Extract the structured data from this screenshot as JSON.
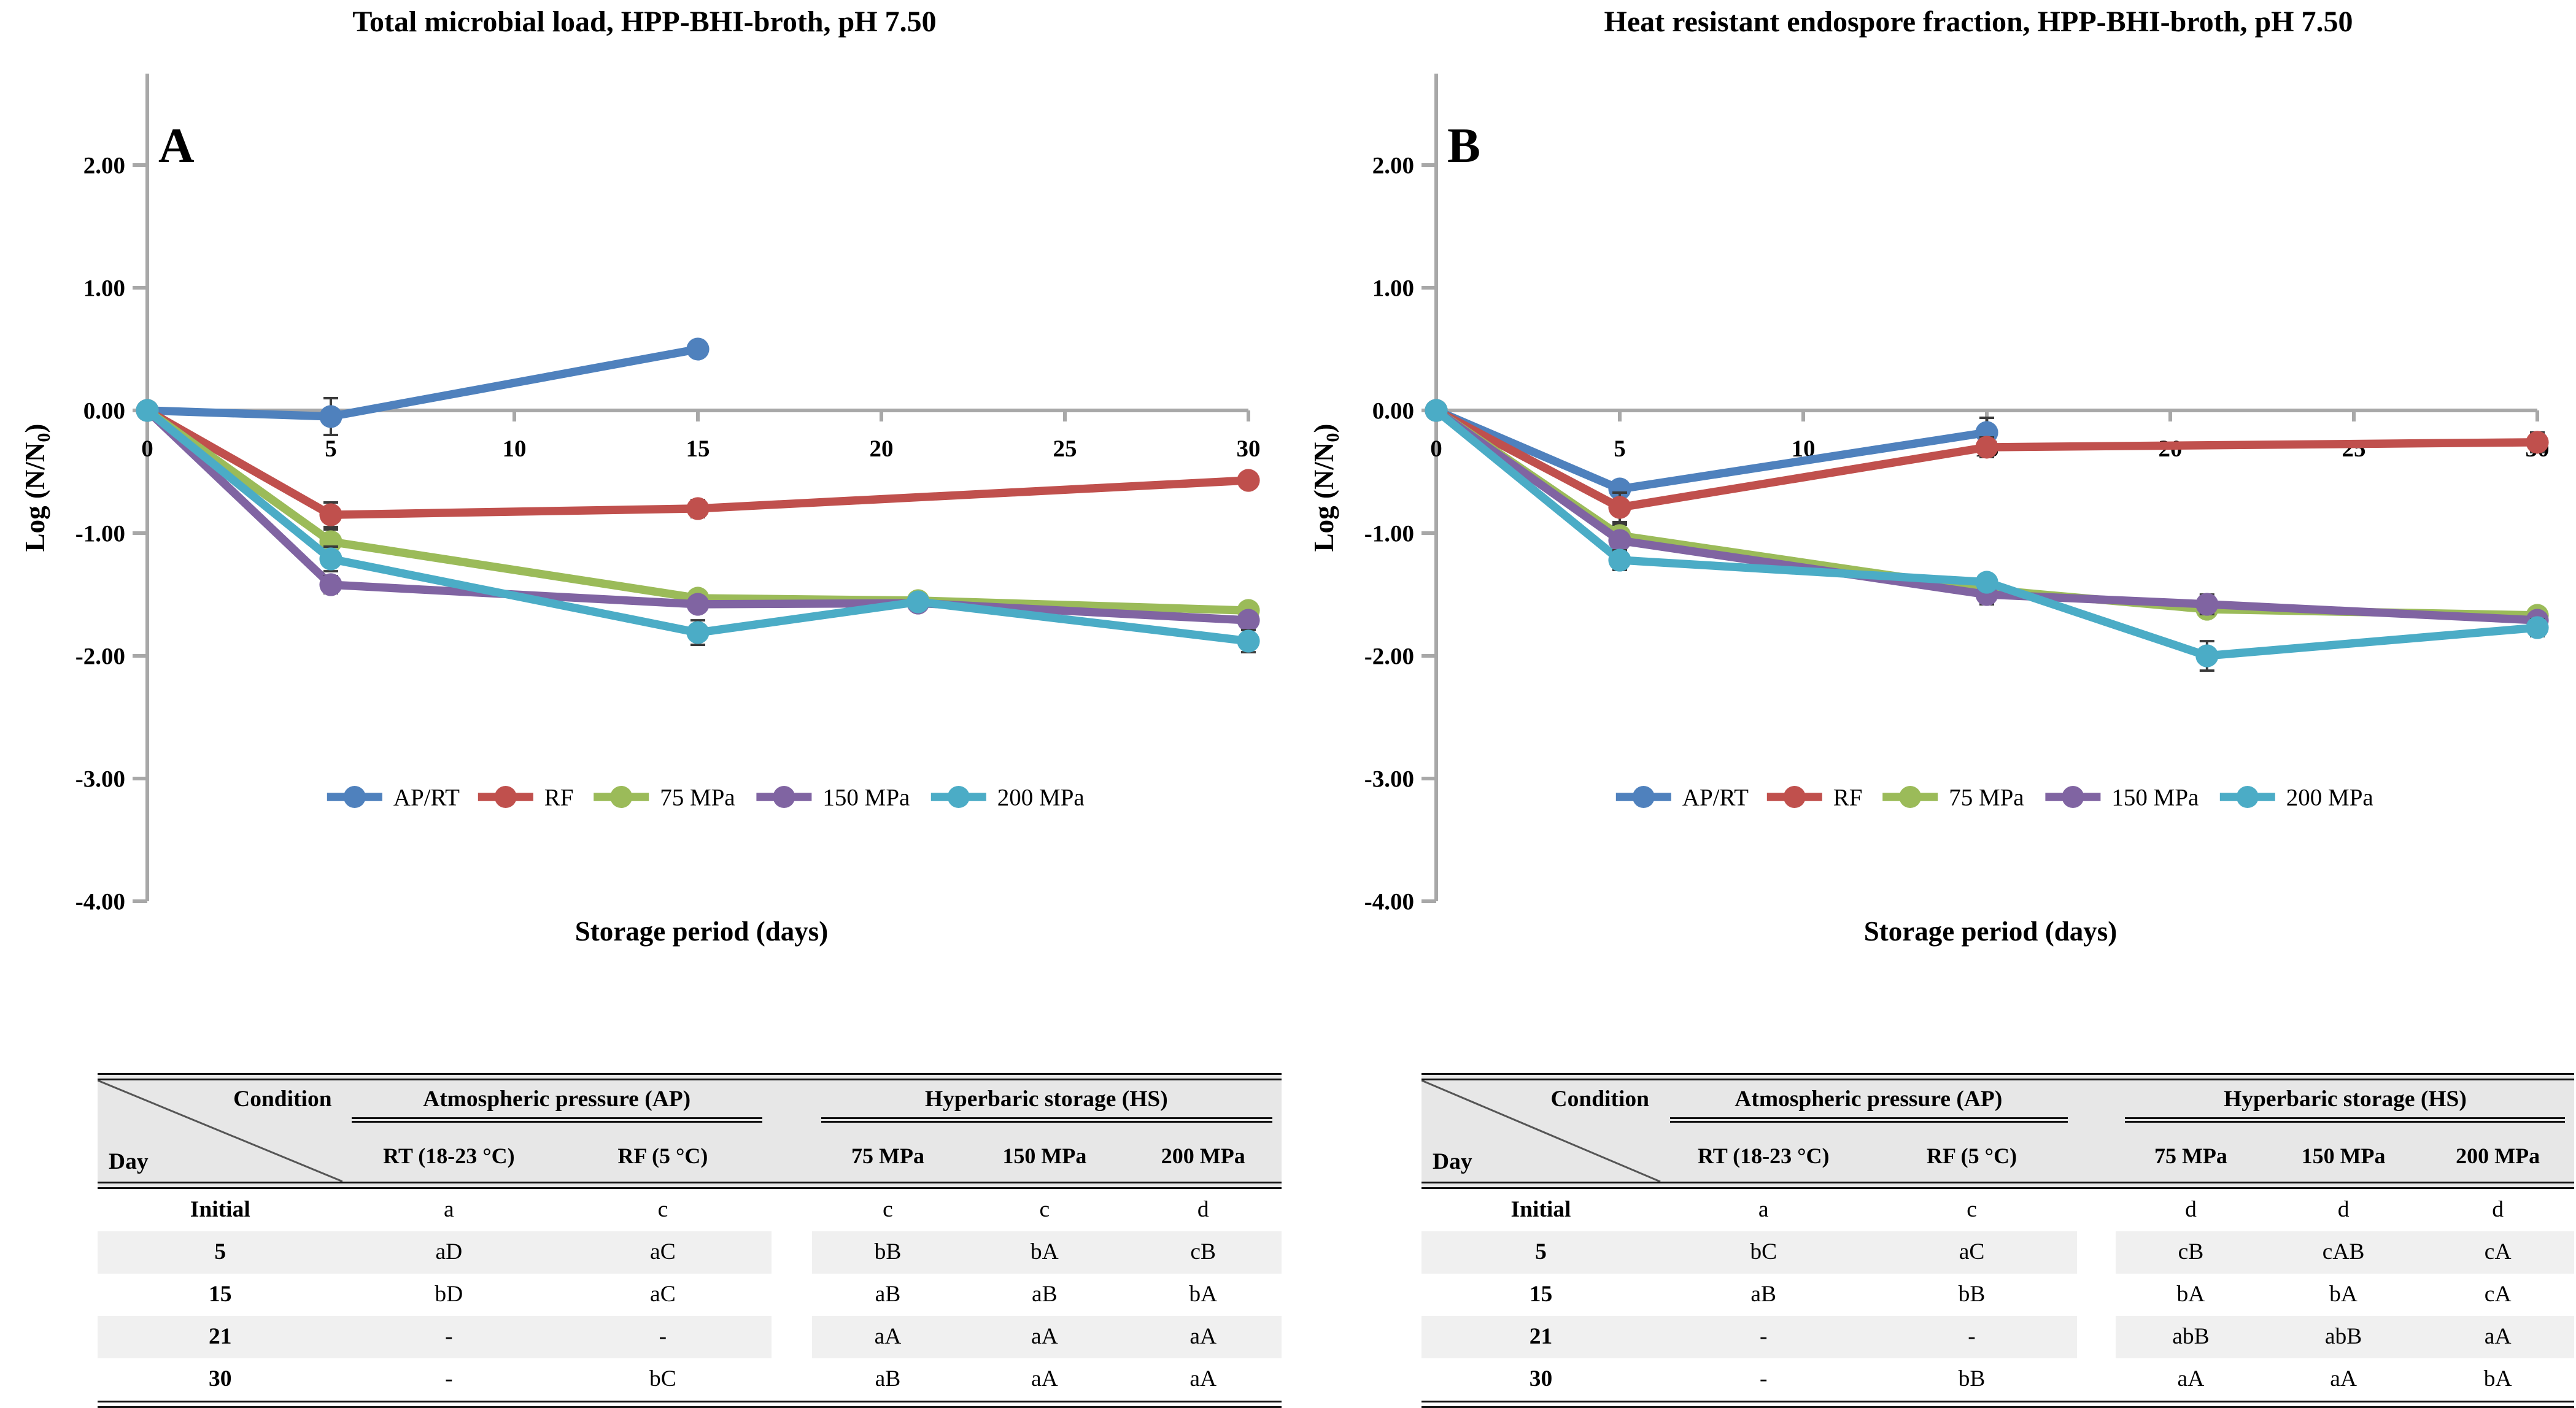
{
  "figure": {
    "background": "#ffffff",
    "axis_color": "#a8a8a8",
    "error_bar_color": "#3a3a3a",
    "table_header_bg": "#e7e7e7",
    "table_stripe_bg": "#f0f0f0",
    "rule_color": "#111111"
  },
  "chart_data": [
    {
      "type": "line",
      "panel_label": "A",
      "title": "Total microbial load, HPP-BHI-broth, pH 7.50",
      "xlabel": "Storage period (days)",
      "ylabel_parts": [
        {
          "text": "Log (N/N",
          "sub": false
        },
        {
          "text": "0",
          "sub": true
        },
        {
          "text": ")",
          "sub": false
        }
      ],
      "xlim": [
        0,
        30
      ],
      "ylim": [
        -4,
        2.75
      ],
      "grid": false,
      "legend_position": "inside-bottom",
      "xticks": [
        {
          "v": 0,
          "label": "0"
        },
        {
          "v": 5,
          "label": "5"
        },
        {
          "v": 10,
          "label": "10"
        },
        {
          "v": 15,
          "label": "15"
        },
        {
          "v": 20,
          "label": "20"
        },
        {
          "v": 25,
          "label": "25"
        },
        {
          "v": 30,
          "label": "30"
        }
      ],
      "yticks": [
        {
          "v": 2,
          "label": "2.00"
        },
        {
          "v": 1,
          "label": "1.00"
        },
        {
          "v": 0,
          "label": "0.00"
        },
        {
          "v": -1,
          "label": "-1.00"
        },
        {
          "v": -2,
          "label": "-2.00"
        },
        {
          "v": -3,
          "label": "-3.00"
        },
        {
          "v": -4,
          "label": "-4.00"
        }
      ],
      "series": [
        {
          "name": "AP/RT",
          "color": "#4F81BD",
          "points": [
            [
              0,
              0.0,
              0
            ],
            [
              5,
              -0.05,
              0.15
            ],
            [
              15,
              0.5,
              0.06
            ]
          ]
        },
        {
          "name": "RF",
          "color": "#C0504D",
          "points": [
            [
              0,
              0.0,
              0
            ],
            [
              5,
              -0.85,
              0.1
            ],
            [
              15,
              -0.8,
              0.07
            ],
            [
              30,
              -0.57,
              0.05
            ]
          ]
        },
        {
          "name": "75 MPa",
          "color": "#9BBB59",
          "points": [
            [
              0,
              0.0,
              0
            ],
            [
              5,
              -1.07,
              0.1
            ],
            [
              15,
              -1.53,
              0.05
            ],
            [
              21,
              -1.55,
              0.06
            ],
            [
              30,
              -1.63,
              0.05
            ]
          ]
        },
        {
          "name": "150 MPa",
          "color": "#8064A2",
          "points": [
            [
              0,
              0.0,
              0
            ],
            [
              5,
              -1.42,
              0.07
            ],
            [
              15,
              -1.58,
              0.05
            ],
            [
              21,
              -1.57,
              0.05
            ],
            [
              30,
              -1.71,
              0.05
            ]
          ]
        },
        {
          "name": "200 MPa",
          "color": "#4BACC6",
          "points": [
            [
              0,
              0.0,
              0
            ],
            [
              5,
              -1.21,
              0.1
            ],
            [
              15,
              -1.81,
              0.1
            ],
            [
              21,
              -1.56,
              0.05
            ],
            [
              30,
              -1.88,
              0.09
            ]
          ]
        }
      ]
    },
    {
      "type": "line",
      "panel_label": "B",
      "title": "Heat resistant endospore fraction, HPP-BHI-broth, pH 7.50",
      "xlabel": "Storage period (days)",
      "ylabel_parts": [
        {
          "text": "Log (N/N",
          "sub": false
        },
        {
          "text": "0",
          "sub": true
        },
        {
          "text": ")",
          "sub": false
        }
      ],
      "xlim": [
        0,
        30
      ],
      "ylim": [
        -4,
        2.75
      ],
      "grid": false,
      "legend_position": "inside-bottom",
      "xticks": [
        {
          "v": 0,
          "label": "0"
        },
        {
          "v": 5,
          "label": "5"
        },
        {
          "v": 10,
          "label": "10"
        },
        {
          "v": 15,
          "label": "15"
        },
        {
          "v": 20,
          "label": "20"
        },
        {
          "v": 25,
          "label": "25"
        },
        {
          "v": 30,
          "label": "30"
        }
      ],
      "yticks": [
        {
          "v": 2,
          "label": "2.00"
        },
        {
          "v": 1,
          "label": "1.00"
        },
        {
          "v": 0,
          "label": "0.00"
        },
        {
          "v": -1,
          "label": "-1.00"
        },
        {
          "v": -2,
          "label": "-2.00"
        },
        {
          "v": -3,
          "label": "-3.00"
        },
        {
          "v": -4,
          "label": "-4.00"
        }
      ],
      "series": [
        {
          "name": "AP/RT",
          "color": "#4F81BD",
          "points": [
            [
              0,
              0.0,
              0
            ],
            [
              5,
              -0.64,
              0.06
            ],
            [
              15,
              -0.18,
              0.12
            ]
          ]
        },
        {
          "name": "RF",
          "color": "#C0504D",
          "points": [
            [
              0,
              0.0,
              0
            ],
            [
              5,
              -0.79,
              0.12
            ],
            [
              15,
              -0.3,
              0.08
            ],
            [
              30,
              -0.26,
              0.08
            ]
          ]
        },
        {
          "name": "75 MPa",
          "color": "#9BBB59",
          "points": [
            [
              0,
              0.0,
              0
            ],
            [
              5,
              -1.02,
              0.09
            ],
            [
              15,
              -1.46,
              0.05
            ],
            [
              21,
              -1.62,
              0.06
            ],
            [
              30,
              -1.67,
              0.06
            ]
          ]
        },
        {
          "name": "150 MPa",
          "color": "#8064A2",
          "points": [
            [
              0,
              0.0,
              0
            ],
            [
              5,
              -1.06,
              0.05
            ],
            [
              15,
              -1.5,
              0.08
            ],
            [
              21,
              -1.58,
              0.08
            ],
            [
              30,
              -1.71,
              0.05
            ]
          ]
        },
        {
          "name": "200 MPa",
          "color": "#4BACC6",
          "points": [
            [
              0,
              0.0,
              0
            ],
            [
              5,
              -1.22,
              0.08
            ],
            [
              15,
              -1.4,
              0.06
            ],
            [
              21,
              -2.0,
              0.12
            ],
            [
              30,
              -1.77,
              0.07
            ]
          ]
        }
      ]
    }
  ],
  "tables": [
    {
      "corner_top": "Condition",
      "corner_bottom": "Day",
      "groups": [
        {
          "label": "Atmospheric pressure (AP)",
          "cols": [
            "RT (18-23 °C)",
            "RF (5 °C)"
          ]
        },
        {
          "label": "Hyperbaric storage (HS)",
          "cols": [
            "75 MPa",
            "150 MPa",
            "200 MPa"
          ]
        }
      ],
      "rows": [
        {
          "day": "Initial",
          "values": [
            "a",
            "c",
            "c",
            "c",
            "d"
          ]
        },
        {
          "day": "5",
          "values": [
            "aD",
            "aC",
            "bB",
            "bA",
            "cB"
          ]
        },
        {
          "day": "15",
          "values": [
            "bD",
            "aC",
            "aB",
            "aB",
            "bA"
          ]
        },
        {
          "day": "21",
          "values": [
            "-",
            "-",
            "aA",
            "aA",
            "aA"
          ]
        },
        {
          "day": "30",
          "values": [
            "-",
            "bC",
            "aB",
            "aA",
            "aA"
          ]
        }
      ]
    },
    {
      "corner_top": "Condition",
      "corner_bottom": "Day",
      "groups": [
        {
          "label": "Atmospheric pressure (AP)",
          "cols": [
            "RT (18-23 °C)",
            "RF (5 °C)"
          ]
        },
        {
          "label": "Hyperbaric storage (HS)",
          "cols": [
            "75 MPa",
            "150 MPa",
            "200 MPa"
          ]
        }
      ],
      "rows": [
        {
          "day": "Initial",
          "values": [
            "a",
            "c",
            "d",
            "d",
            "d"
          ]
        },
        {
          "day": "5",
          "values": [
            "bC",
            "aC",
            "cB",
            "cAB",
            "cA"
          ]
        },
        {
          "day": "15",
          "values": [
            "aB",
            "bB",
            "bA",
            "bA",
            "cA"
          ]
        },
        {
          "day": "21",
          "values": [
            "-",
            "-",
            "abB",
            "abB",
            "aA"
          ]
        },
        {
          "day": "30",
          "values": [
            "-",
            "bB",
            "aA",
            "aA",
            "bA"
          ]
        }
      ]
    }
  ]
}
